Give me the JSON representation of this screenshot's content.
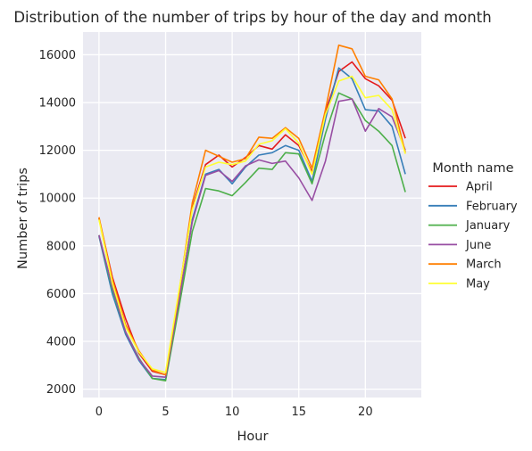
{
  "chart_data": {
    "type": "line",
    "title": "Distribution of the number of trips by hour of the day and month",
    "xlabel": "Hour",
    "ylabel": "Number of trips",
    "xlim": [
      -1.2,
      24.2
    ],
    "ylim": [
      1650,
      16950
    ],
    "xticks": [
      0,
      5,
      10,
      15,
      20
    ],
    "yticks": [
      2000,
      4000,
      6000,
      8000,
      10000,
      12000,
      14000,
      16000
    ],
    "grid": true,
    "legend_title": "Month name",
    "legend_position": "right",
    "x": [
      0,
      1,
      2,
      3,
      4,
      5,
      6,
      7,
      8,
      9,
      10,
      11,
      12,
      13,
      14,
      15,
      16,
      17,
      18,
      19,
      20,
      21,
      22,
      23
    ],
    "series": [
      {
        "name": "April",
        "color": "#e41a1c",
        "values": [
          9150,
          6700,
          4950,
          3500,
          2750,
          2600,
          6000,
          9600,
          11400,
          11800,
          11300,
          11700,
          12200,
          12050,
          12650,
          12200,
          11100,
          13600,
          15300,
          15700,
          15000,
          14700,
          14100,
          12500
        ]
      },
      {
        "name": "February",
        "color": "#377eb8",
        "values": [
          8400,
          6000,
          4300,
          3200,
          2450,
          2400,
          5500,
          9100,
          11000,
          11200,
          10600,
          11300,
          11800,
          11900,
          12200,
          12000,
          10700,
          13300,
          15450,
          15000,
          13700,
          13650,
          13000,
          11000
        ]
      },
      {
        "name": "January",
        "color": "#4daf4a",
        "values": [
          8450,
          6200,
          4400,
          3300,
          2450,
          2350,
          5400,
          8600,
          10400,
          10300,
          10100,
          10650,
          11250,
          11200,
          11900,
          11850,
          10600,
          12700,
          14400,
          14150,
          13250,
          12800,
          12200,
          10250
        ]
      },
      {
        "name": "June",
        "color": "#984ea3",
        "values": [
          8450,
          6300,
          4400,
          3250,
          2550,
          2500,
          5700,
          9000,
          10950,
          11150,
          10700,
          11350,
          11600,
          11450,
          11550,
          10850,
          9900,
          11550,
          14050,
          14150,
          12800,
          13750,
          13400,
          12000
        ]
      },
      {
        "name": "March",
        "color": "#ff7f00",
        "values": [
          9200,
          6600,
          4700,
          3600,
          2800,
          2600,
          6000,
          9800,
          12000,
          11750,
          11500,
          11650,
          12550,
          12500,
          12950,
          12500,
          11250,
          13700,
          16400,
          16250,
          15100,
          14950,
          14150,
          11900
        ]
      },
      {
        "name": "May",
        "color": "#ffff33",
        "values": [
          9100,
          6450,
          4600,
          3550,
          2850,
          2700,
          6100,
          9500,
          11300,
          11500,
          11400,
          11550,
          12250,
          12400,
          12900,
          12300,
          11000,
          13500,
          14900,
          15100,
          14200,
          14300,
          13700,
          11850
        ]
      }
    ]
  }
}
